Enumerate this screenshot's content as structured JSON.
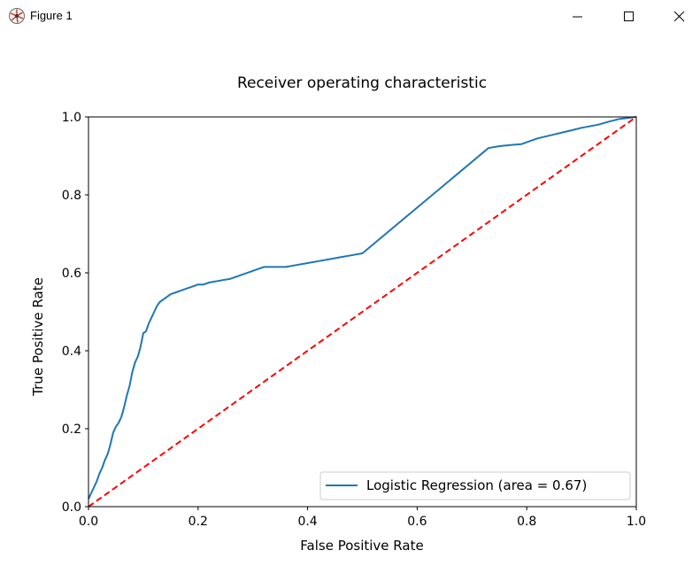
{
  "window": {
    "title": "Figure 1",
    "icons": {
      "app": "figure-app-icon",
      "minimize": "minimize-icon",
      "maximize": "maximize-icon",
      "close": "close-icon"
    }
  },
  "chart_data": {
    "type": "line",
    "title": "Receiver operating characteristic",
    "xlabel": "False Positive Rate",
    "ylabel": "True Positive Rate",
    "xlim": [
      0.0,
      1.0
    ],
    "ylim": [
      0.0,
      1.0
    ],
    "xticks": [
      "0.0",
      "0.2",
      "0.4",
      "0.6",
      "0.8",
      "1.0"
    ],
    "yticks": [
      "0.0",
      "0.2",
      "0.4",
      "0.6",
      "0.8",
      "1.0"
    ],
    "grid": false,
    "legend_position": "lower right",
    "series": [
      {
        "name": "Logistic Regression (area = 0.67)",
        "color": "#1f77b4",
        "style": "solid",
        "x": [
          0.0,
          0.005,
          0.01,
          0.015,
          0.02,
          0.025,
          0.03,
          0.035,
          0.04,
          0.045,
          0.05,
          0.055,
          0.06,
          0.065,
          0.07,
          0.075,
          0.08,
          0.085,
          0.09,
          0.095,
          0.1,
          0.105,
          0.11,
          0.115,
          0.12,
          0.125,
          0.13,
          0.14,
          0.15,
          0.16,
          0.17,
          0.18,
          0.19,
          0.2,
          0.21,
          0.22,
          0.24,
          0.26,
          0.28,
          0.3,
          0.32,
          0.34,
          0.36,
          0.38,
          0.4,
          0.42,
          0.44,
          0.46,
          0.48,
          0.5,
          0.73,
          0.75,
          0.77,
          0.79,
          0.8,
          0.82,
          0.85,
          0.88,
          0.9,
          0.93,
          0.95,
          0.97,
          1.0
        ],
        "y": [
          0.02,
          0.035,
          0.05,
          0.065,
          0.085,
          0.1,
          0.12,
          0.135,
          0.16,
          0.19,
          0.205,
          0.215,
          0.23,
          0.255,
          0.285,
          0.31,
          0.345,
          0.37,
          0.385,
          0.41,
          0.445,
          0.45,
          0.47,
          0.485,
          0.5,
          0.515,
          0.525,
          0.535,
          0.545,
          0.55,
          0.555,
          0.56,
          0.565,
          0.57,
          0.57,
          0.575,
          0.58,
          0.585,
          0.595,
          0.605,
          0.615,
          0.615,
          0.615,
          0.62,
          0.625,
          0.63,
          0.635,
          0.64,
          0.645,
          0.65,
          0.92,
          0.925,
          0.928,
          0.93,
          0.935,
          0.945,
          0.955,
          0.965,
          0.972,
          0.98,
          0.988,
          0.995,
          1.0
        ]
      },
      {
        "name": "",
        "color": "#ff0000",
        "style": "dashed",
        "x": [
          0.0,
          1.0
        ],
        "y": [
          0.0,
          1.0
        ]
      }
    ]
  }
}
